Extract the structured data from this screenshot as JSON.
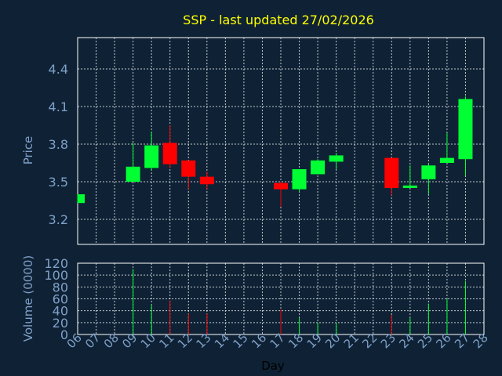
{
  "chart_data": {
    "type": "candlestick",
    "title": "SSP - last updated 27/02/2026",
    "xlabel": "Day",
    "ylabel": "Price",
    "volume_label": "Volume (0000)",
    "x_ticks": [
      "06",
      "07",
      "08",
      "09",
      "10",
      "11",
      "12",
      "13",
      "14",
      "15",
      "16",
      "17",
      "18",
      "19",
      "20",
      "21",
      "22",
      "23",
      "24",
      "25",
      "26",
      "27",
      "28"
    ],
    "price_ticks": [
      "3.2",
      "3.5",
      "3.8",
      "4.1",
      "4.4"
    ],
    "volume_ticks": [
      "0",
      "20",
      "40",
      "60",
      "80",
      "100",
      "120"
    ],
    "ylim": [
      3.0,
      4.65
    ],
    "volume_ylim": [
      0,
      120
    ],
    "grid": true,
    "colors": {
      "up": "#00ff33",
      "down": "#ff0000",
      "background": "#0f2235",
      "title": "#ffff00",
      "axis_text": "#7fa0c8"
    },
    "candles": [
      {
        "day": "06",
        "open": 3.33,
        "high": 3.4,
        "low": 3.33,
        "close": 3.4,
        "volume": 0
      },
      {
        "day": "09",
        "open": 3.5,
        "high": 3.81,
        "low": 3.5,
        "close": 3.62,
        "volume": 110
      },
      {
        "day": "10",
        "open": 3.61,
        "high": 3.9,
        "low": 3.59,
        "close": 3.79,
        "volume": 50
      },
      {
        "day": "11",
        "open": 3.81,
        "high": 3.95,
        "low": 3.61,
        "close": 3.64,
        "volume": 57
      },
      {
        "day": "12",
        "open": 3.67,
        "high": 3.67,
        "low": 3.44,
        "close": 3.54,
        "volume": 35
      },
      {
        "day": "13",
        "open": 3.54,
        "high": 3.58,
        "low": 3.44,
        "close": 3.48,
        "volume": 35
      },
      {
        "day": "17",
        "open": 3.49,
        "high": 3.5,
        "low": 3.3,
        "close": 3.44,
        "volume": 42
      },
      {
        "day": "18",
        "open": 3.44,
        "high": 3.6,
        "low": 3.42,
        "close": 3.6,
        "volume": 28
      },
      {
        "day": "19",
        "open": 3.56,
        "high": 3.68,
        "low": 3.56,
        "close": 3.67,
        "volume": 20
      },
      {
        "day": "20",
        "open": 3.66,
        "high": 3.73,
        "low": 3.6,
        "close": 3.71,
        "volume": 20
      },
      {
        "day": "23",
        "open": 3.69,
        "high": 3.69,
        "low": 3.39,
        "close": 3.45,
        "volume": 33
      },
      {
        "day": "24",
        "open": 3.45,
        "high": 3.63,
        "low": 3.45,
        "close": 3.47,
        "volume": 28
      },
      {
        "day": "25",
        "open": 3.52,
        "high": 3.64,
        "low": 3.4,
        "close": 3.63,
        "volume": 52
      },
      {
        "day": "26",
        "open": 3.65,
        "high": 3.89,
        "low": 3.65,
        "close": 3.69,
        "volume": 60
      },
      {
        "day": "27",
        "open": 3.68,
        "high": 4.18,
        "low": 3.55,
        "close": 4.16,
        "volume": 90
      }
    ]
  }
}
